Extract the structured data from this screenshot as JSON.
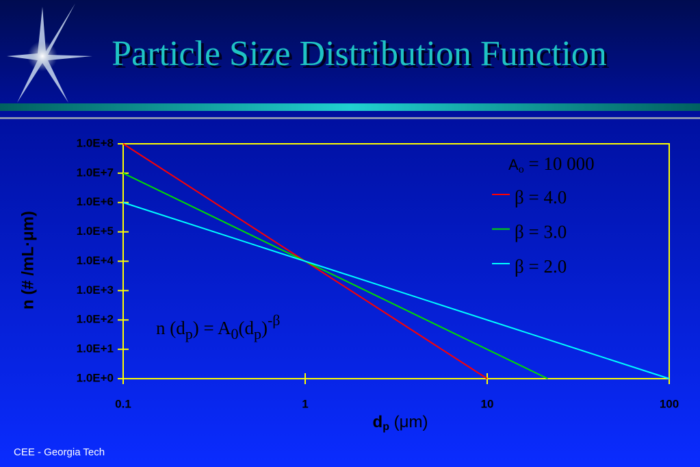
{
  "chart_data": {
    "type": "line",
    "title": "Particle Size Distribution Function",
    "footer": "CEE - Georgia Tech",
    "x_label": [
      "d",
      "p",
      " (μm)"
    ],
    "y_label": "n (# /mL·μm)",
    "legend_title": [
      "A",
      "o",
      " = 10 000"
    ],
    "annotation": [
      "n (d",
      "p",
      ")  =  A",
      "0",
      "(d",
      "p",
      ")",
      "-β"
    ],
    "log_x": true,
    "log_y": true,
    "xlim": [
      0.1,
      100
    ],
    "xticks": [
      0.1,
      1,
      10,
      100
    ],
    "ylim": [
      1,
      100000000
    ],
    "yticks": [
      {
        "value": 1,
        "label": "1.0E+0"
      },
      {
        "value": 10,
        "label": "1.0E+1"
      },
      {
        "value": 100,
        "label": "1.0E+2"
      },
      {
        "value": 1000,
        "label": "1.0E+3"
      },
      {
        "value": 10000,
        "label": "1.0E+4"
      },
      {
        "value": 100000,
        "label": "1.0E+5"
      },
      {
        "value": 1000000,
        "label": "1.0E+6"
      },
      {
        "value": 10000000,
        "label": "1.0E+7"
      },
      {
        "value": 100000000,
        "label": "1.0E+8"
      }
    ],
    "series": [
      {
        "name": "β = 4.0",
        "color": "#ff0000",
        "x": [
          0.1,
          10
        ],
        "values": [
          100000000,
          1
        ]
      },
      {
        "name": "β = 3.0",
        "color": "#00dd00",
        "x": [
          0.1,
          21.5
        ],
        "values": [
          10000000,
          1
        ]
      },
      {
        "name": "β = 2.0",
        "color": "#00ffff",
        "x": [
          0.1,
          100
        ],
        "values": [
          1000000,
          1
        ]
      }
    ]
  }
}
